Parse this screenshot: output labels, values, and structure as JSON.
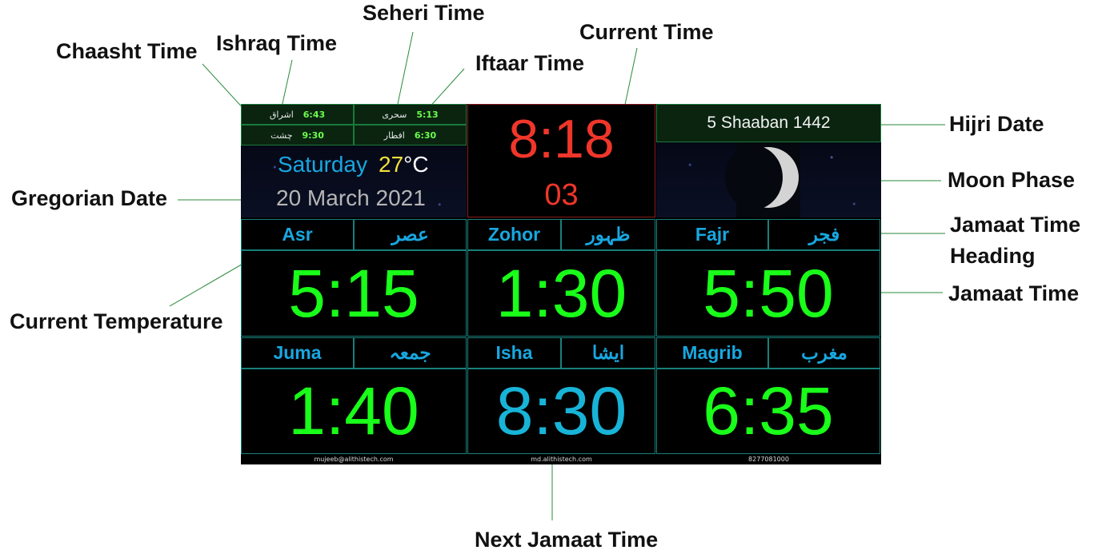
{
  "callouts": {
    "seheri": "Seheri Time",
    "current_time": "Current Time",
    "chaasht": "Chaasht Time",
    "ishraq": "Ishraq Time",
    "iftaar": "Iftaar Time",
    "hijri_date": "Hijri Date",
    "moon_phase": "Moon Phase",
    "gregorian_date": "Gregorian Date",
    "jamaat_heading": "Jamaat Time\nHeading",
    "jamaat_time": "Jamaat Time",
    "current_temperature": "Current Temperature",
    "next_jamaat": "Next Jamaat Time"
  },
  "small_times": {
    "ishraq": {
      "label": "اشراق",
      "time": "6:43"
    },
    "seheri": {
      "label": "سحری",
      "time": "5:13"
    },
    "chaasht": {
      "label": "چشت",
      "time": "9:30"
    },
    "iftaar": {
      "label": "افطار",
      "time": "6:30"
    }
  },
  "date_panel": {
    "day": "Saturday",
    "temperature": "27",
    "unit": "°C",
    "date": "20 March 2021"
  },
  "clock": {
    "time": "8:18",
    "seconds": "03"
  },
  "hijri_date": "5 Shaaban 1442",
  "prayers": [
    {
      "name": "Asr",
      "urdu": "عصر",
      "time": "5:15"
    },
    {
      "name": "Zohor",
      "urdu": "ظہور",
      "time": "1:30"
    },
    {
      "name": "Fajr",
      "urdu": "فجر",
      "time": "5:50"
    },
    {
      "name": "Juma",
      "urdu": "جمعہ",
      "time": "1:40"
    },
    {
      "name": "Isha",
      "urdu": "ایشا",
      "time": "8:30"
    },
    {
      "name": "Magrib",
      "urdu": "مغرب",
      "time": "6:35"
    }
  ],
  "footer": {
    "email": "mujeeb@alithistech.com",
    "site": "md.alithistech.com",
    "phone": "8277081000"
  },
  "colors": {
    "clock": "#f0362a",
    "jamaat": "#19ff19",
    "next_jamaat": "#18b4d8",
    "heading": "#18a7e0",
    "temperature": "#f2e23a"
  }
}
